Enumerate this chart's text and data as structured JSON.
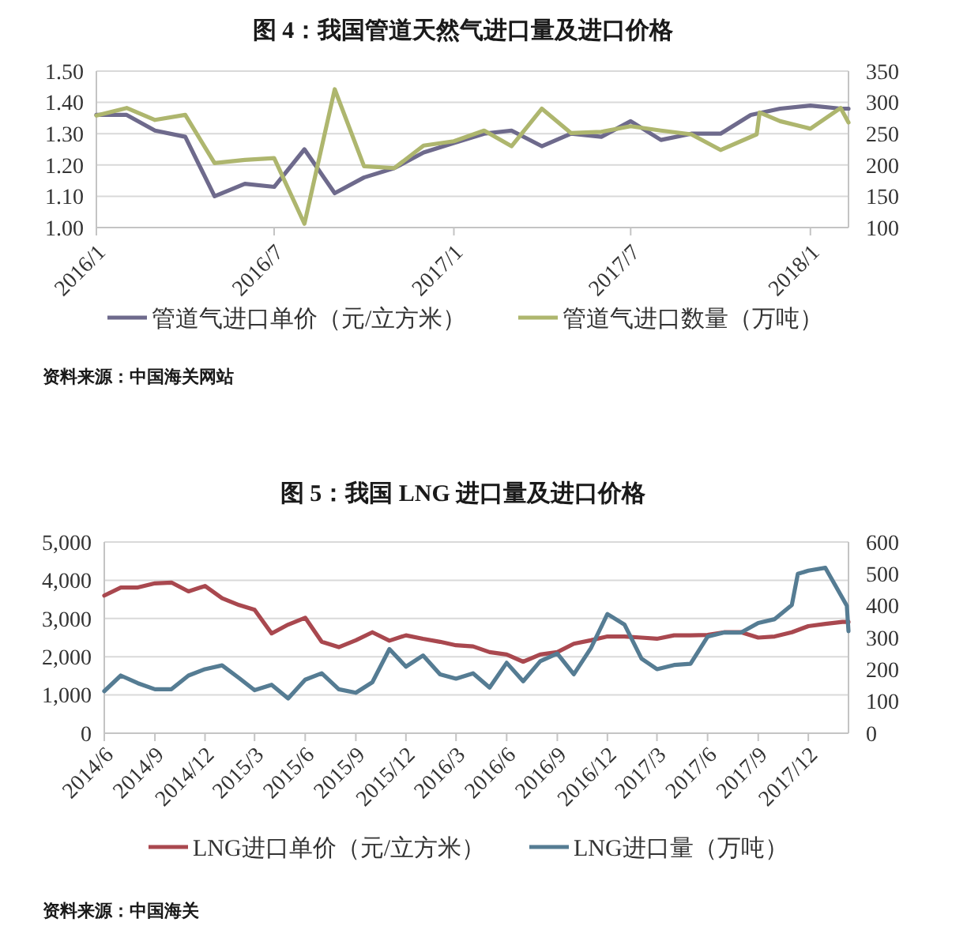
{
  "chart_data": [
    {
      "type": "line",
      "title": "图 4：我国管道天然气进口量及进口价格",
      "xlim": [
        "2016-01-01",
        "2018-02-09"
      ],
      "xticks": [
        {
          "value": "2016-01",
          "label": "2016/1"
        },
        {
          "value": "2016-07",
          "label": "2016/7"
        },
        {
          "value": "2017-01",
          "label": "2017/1"
        },
        {
          "value": "2017-07",
          "label": "2017/7"
        },
        {
          "value": "2018-01",
          "label": "2018/1"
        }
      ],
      "ylim": [
        1.0,
        1.5
      ],
      "yticks": [
        {
          "value": 1.0,
          "label": "1.00"
        },
        {
          "value": 1.1,
          "label": "1.10"
        },
        {
          "value": 1.2,
          "label": "1.20"
        },
        {
          "value": 1.3,
          "label": "1.30"
        },
        {
          "value": 1.4,
          "label": "1.40"
        },
        {
          "value": 1.5,
          "label": "1.50"
        }
      ],
      "y2lim": [
        100,
        350
      ],
      "y2ticks": [
        100,
        150,
        200,
        250,
        300,
        350
      ],
      "grid": "y",
      "legend": "bottom",
      "series": [
        {
          "name": "管道气进口单价（元/立方米）",
          "color": "#6e6a8c",
          "x": [
            "2016-01",
            "2016-02",
            "2016-03",
            "2016-04",
            "2016-05",
            "2016-06",
            "2016-07",
            "2016-08",
            "2016-09",
            "2016-10",
            "2016-11",
            "2016-12",
            "2017-01",
            "2017-02",
            "2017-03",
            "2017-04",
            "2017-05",
            "2017-06",
            "2017-07",
            "2017-08",
            "2017-09",
            "2017-10",
            "2017-11",
            "2017-12",
            "2018-01",
            "2018-02",
            "2018-02-09"
          ],
          "values": [
            1.36,
            1.36,
            1.31,
            1.29,
            1.1,
            1.14,
            1.13,
            1.25,
            1.11,
            1.16,
            1.19,
            1.24,
            1.27,
            1.3,
            1.31,
            1.26,
            1.3,
            1.29,
            1.34,
            1.28,
            1.3,
            1.3,
            1.36,
            1.38,
            1.39,
            1.38,
            1.38
          ]
        },
        {
          "name": "管道气进口数量（万吨）",
          "color": "#aeb66e",
          "axis": "y2",
          "x": [
            "2016-01",
            "2016-02",
            "2016-03",
            "2016-04",
            "2016-05",
            "2016-06",
            "2016-07",
            "2016-08",
            "2016-09",
            "2016-10",
            "2016-11",
            "2016-12",
            "2017-01",
            "2017-02",
            "2017-03",
            "2017-04",
            "2017-05",
            "2017-06",
            "2017-07",
            "2017-08",
            "2017-09",
            "2017-10",
            "2017-11-07",
            "2017-11-10",
            "2017-12",
            "2018-01",
            "2018-02",
            "2018-02-09"
          ],
          "values": [
            279,
            291,
            272,
            280,
            203,
            208,
            211,
            106,
            321,
            198,
            195,
            231,
            238,
            255,
            230,
            290,
            251,
            253,
            262,
            255,
            249,
            224,
            249,
            284,
            270,
            258,
            291,
            268
          ]
        }
      ],
      "annotations": [
        "资料来源：中国海关网站"
      ]
    },
    {
      "type": "line",
      "title": "图 5：我国 LNG 进口量及进口价格",
      "xlim": [
        "2014-06-01",
        "2018-02-12"
      ],
      "xticks": [
        {
          "value": "2014-06",
          "label": "2014/6"
        },
        {
          "value": "2014-09",
          "label": "2014/9"
        },
        {
          "value": "2014-12",
          "label": "2014/12"
        },
        {
          "value": "2015-03",
          "label": "2015/3"
        },
        {
          "value": "2015-06",
          "label": "2015/6"
        },
        {
          "value": "2015-09",
          "label": "2015/9"
        },
        {
          "value": "2015-12",
          "label": "2015/12"
        },
        {
          "value": "2016-03",
          "label": "2016/3"
        },
        {
          "value": "2016-06",
          "label": "2016/6"
        },
        {
          "value": "2016-09",
          "label": "2016/9"
        },
        {
          "value": "2016-12",
          "label": "2016/12"
        },
        {
          "value": "2017-03",
          "label": "2017/3"
        },
        {
          "value": "2017-06",
          "label": "2017/6"
        },
        {
          "value": "2017-09",
          "label": "2017/9"
        },
        {
          "value": "2017-12",
          "label": "2017/12"
        }
      ],
      "ylim": [
        0,
        5000
      ],
      "yticks": [
        0,
        {
          "value": 1000,
          "label": "1,000"
        },
        {
          "value": 2000,
          "label": "2,000"
        },
        {
          "value": 3000,
          "label": "3,000"
        },
        {
          "value": 4000,
          "label": "4,000"
        },
        {
          "value": 5000,
          "label": "5,000"
        }
      ],
      "y2lim": [
        0,
        600
      ],
      "y2ticks": [
        0,
        100,
        200,
        300,
        400,
        500,
        600
      ],
      "grid": "y",
      "legend": "bottom",
      "series": [
        {
          "name": "LNG进口单价（元/立方米）",
          "color": "#a9484f",
          "x": [
            "2014-06",
            "2014-07",
            "2014-08",
            "2014-09",
            "2014-10",
            "2014-11",
            "2014-12",
            "2015-01",
            "2015-02",
            "2015-03",
            "2015-04",
            "2015-05",
            "2015-06",
            "2015-07",
            "2015-08",
            "2015-09",
            "2015-10",
            "2015-11",
            "2015-12",
            "2016-01",
            "2016-02",
            "2016-03",
            "2016-04",
            "2016-05",
            "2016-06",
            "2016-07",
            "2016-08",
            "2016-09",
            "2016-10",
            "2016-11",
            "2016-12",
            "2017-01",
            "2017-02",
            "2017-03",
            "2017-04",
            "2017-05",
            "2017-06",
            "2017-07",
            "2017-08",
            "2017-09",
            "2017-10",
            "2017-11",
            "2017-12",
            "2018-01",
            "2018-02",
            "2018-02-12"
          ],
          "values": [
            3600,
            3810,
            3810,
            3920,
            3940,
            3710,
            3850,
            3530,
            3350,
            3230,
            2610,
            2840,
            3020,
            2390,
            2250,
            2430,
            2640,
            2420,
            2560,
            2470,
            2390,
            2300,
            2270,
            2120,
            2060,
            1870,
            2060,
            2120,
            2340,
            2430,
            2530,
            2530,
            2500,
            2470,
            2560,
            2560,
            2570,
            2640,
            2640,
            2500,
            2530,
            2640,
            2800,
            2860,
            2910,
            2910
          ]
        },
        {
          "name": "LNG进口量（万吨）",
          "color": "#557c93",
          "axis": "y2",
          "x": [
            "2014-06",
            "2014-07",
            "2014-08",
            "2014-09",
            "2014-10",
            "2014-11",
            "2014-12",
            "2015-01",
            "2015-02",
            "2015-03",
            "2015-04",
            "2015-05",
            "2015-06",
            "2015-07",
            "2015-08",
            "2015-09",
            "2015-10",
            "2015-11",
            "2015-12",
            "2016-01",
            "2016-02",
            "2016-03",
            "2016-04",
            "2016-05",
            "2016-06",
            "2016-07",
            "2016-08",
            "2016-09",
            "2016-10",
            "2016-11",
            "2016-12",
            "2017-01",
            "2017-02",
            "2017-03",
            "2017-04",
            "2017-05",
            "2017-06",
            "2017-07",
            "2017-08",
            "2017-09",
            "2017-10",
            "2017-11",
            "2017-11-12",
            "2017-12",
            "2018-01",
            "2018-02-09",
            "2018-02-12"
          ],
          "values": [
            132,
            181,
            157,
            138,
            138,
            181,
            201,
            213,
            173,
            135,
            152,
            109,
            168,
            188,
            138,
            127,
            160,
            264,
            209,
            244,
            185,
            171,
            188,
            143,
            221,
            163,
            226,
            250,
            185,
            267,
            374,
            341,
            234,
            201,
            214,
            218,
            303,
            316,
            316,
            346,
            358,
            402,
            500,
            510,
            519,
            400,
            320
          ]
        }
      ],
      "annotations": [
        "资料来源：中国海关"
      ]
    }
  ]
}
